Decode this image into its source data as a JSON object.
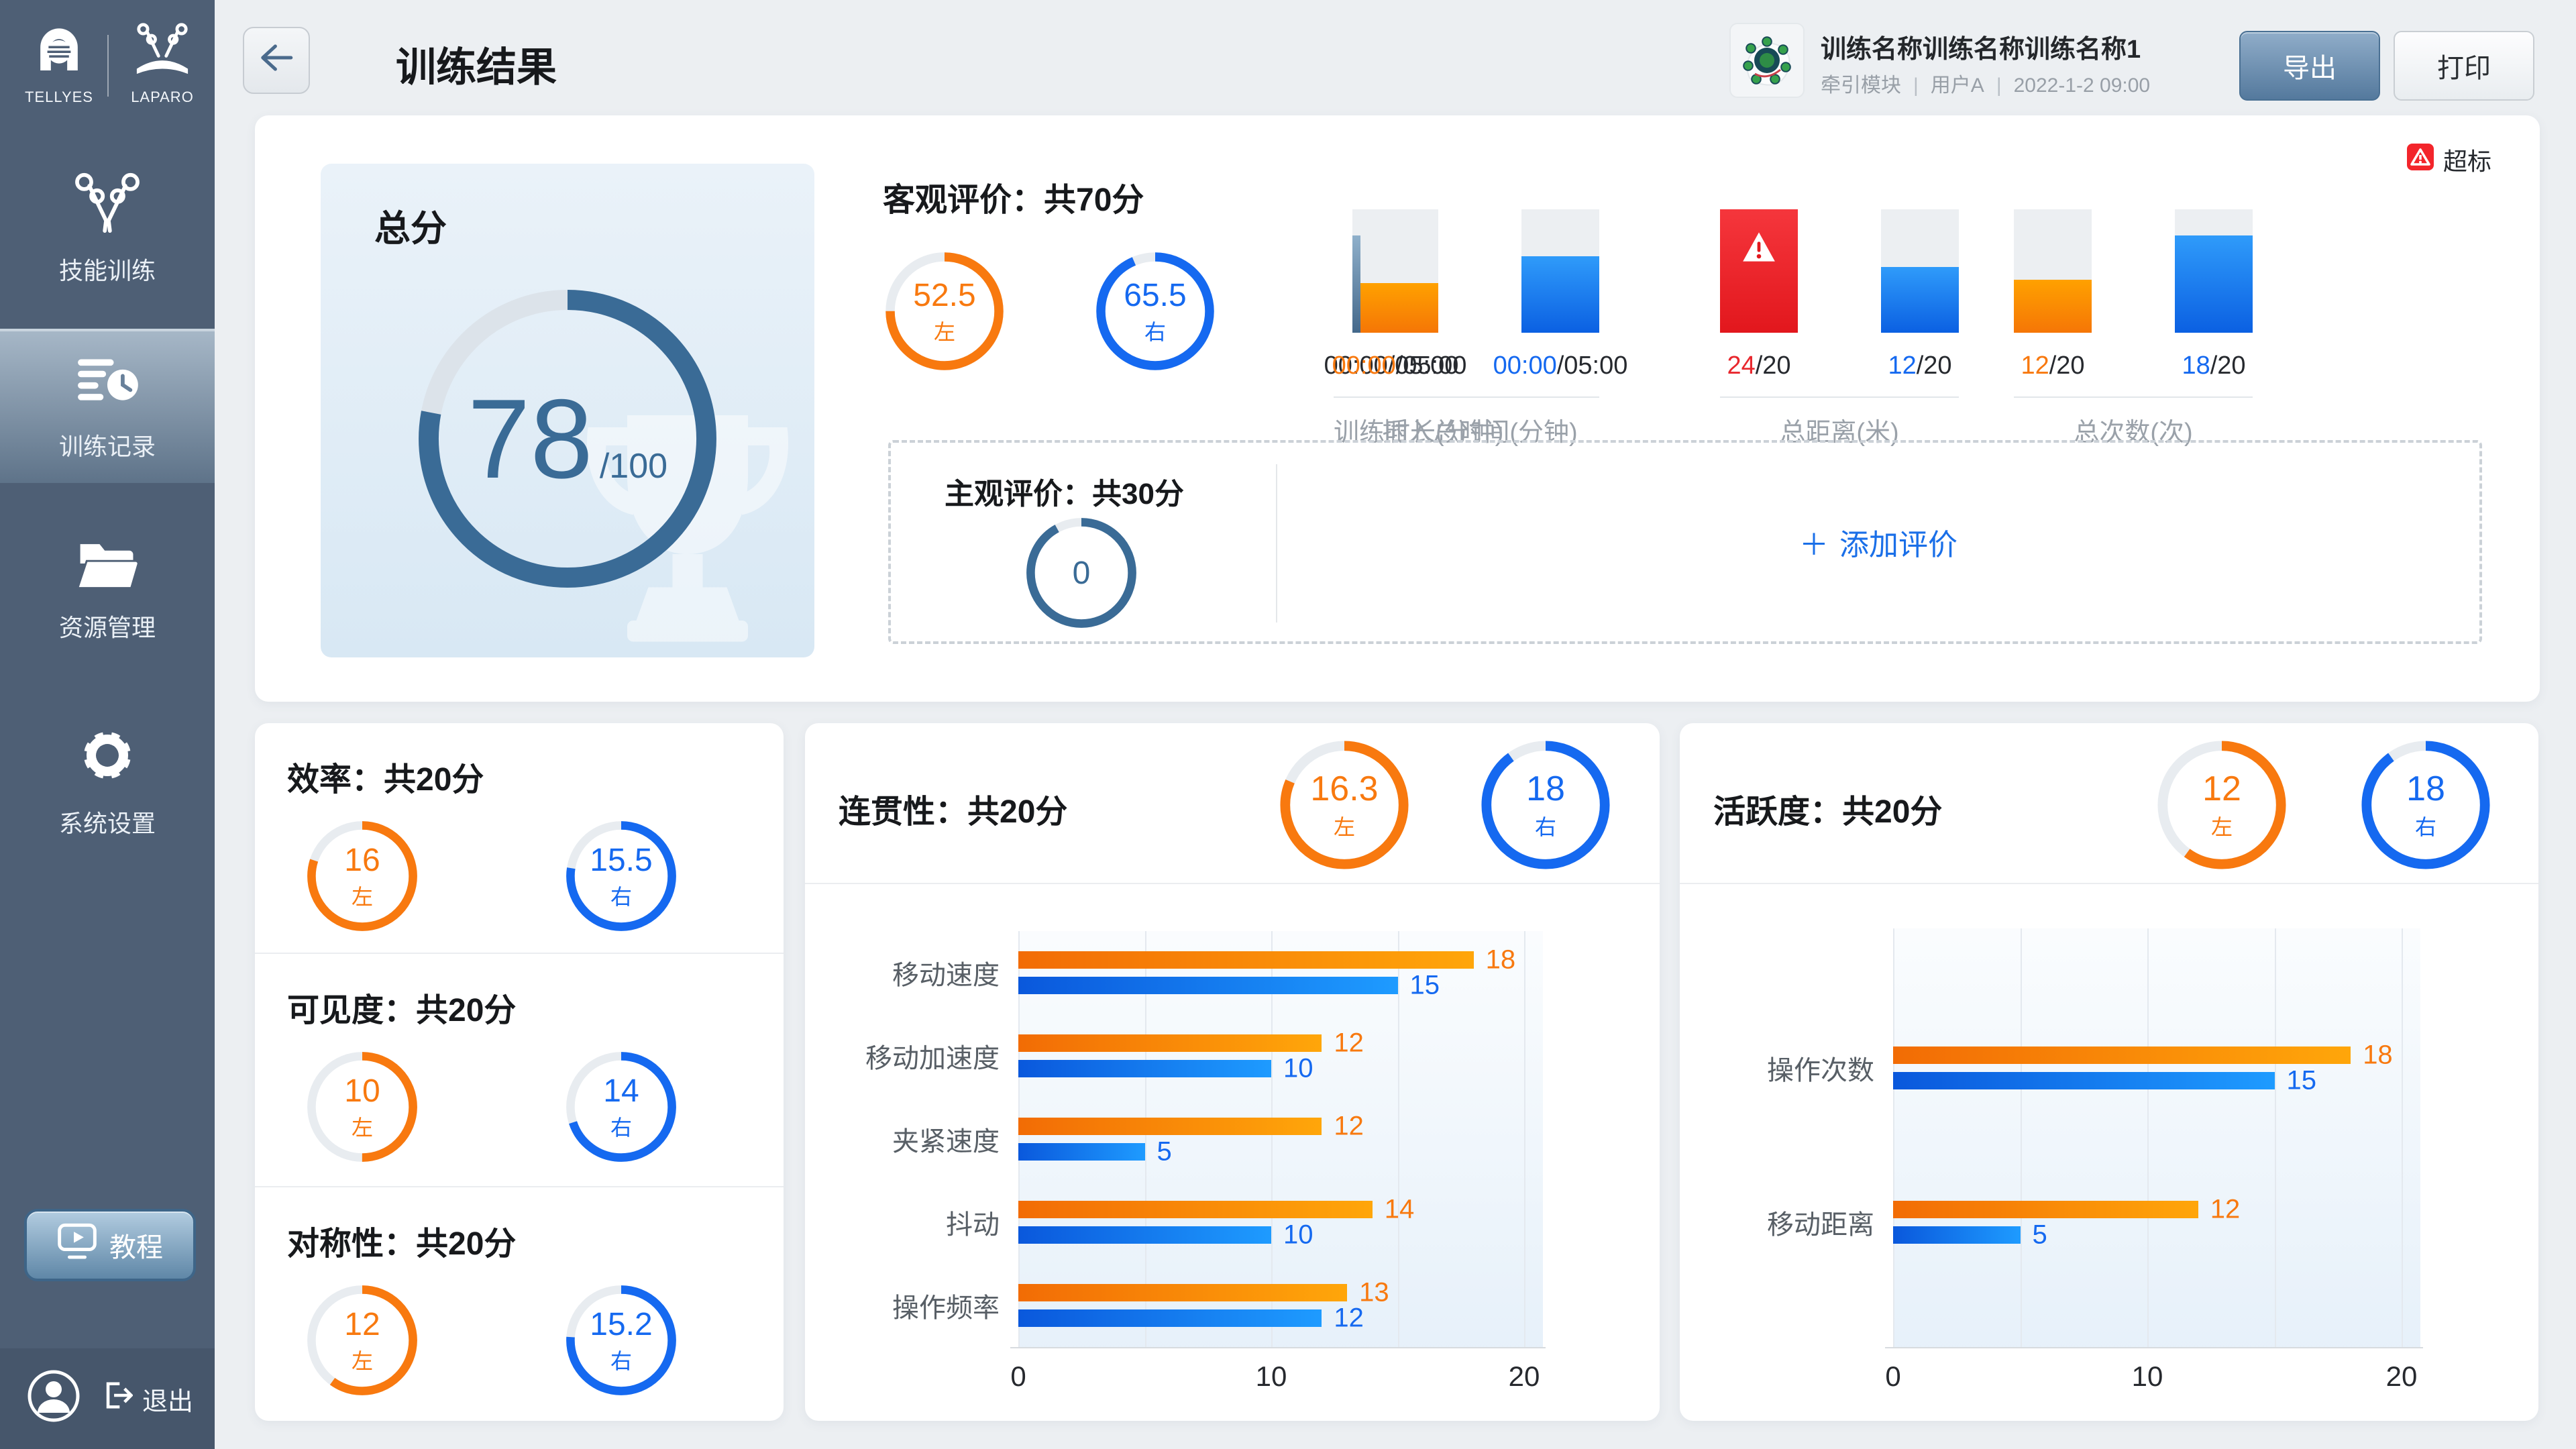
{
  "palette": {
    "orange": "#F8790F",
    "blue": "#1569F0",
    "steel": "#3A6B96",
    "red": "#E8272D",
    "dark": "#26292E"
  },
  "sidebar": {
    "logo1": "TELLYES",
    "logo2": "LAPARO",
    "menu": [
      {
        "label": "技能训练"
      },
      {
        "label": "训练记录"
      },
      {
        "label": "资源管理"
      },
      {
        "label": "系统设置"
      }
    ],
    "tutorial_label": "教程",
    "logout_label": "退出"
  },
  "header": {
    "title": "训练结果",
    "session": {
      "name": "训练名称训练名称训练名称1",
      "module": "牵引模块",
      "user": "用户A",
      "datetime": "2022-1-2 09:00",
      "sep": "|"
    },
    "export_label": "导出",
    "print_label": "打印"
  },
  "overview": {
    "total": {
      "label": "总分",
      "value": "78",
      "max_label": "/100",
      "pct": 0.78,
      "color": "steel"
    },
    "objective": {
      "heading": "客观评价：共70分",
      "left": {
        "value": "52.5",
        "sub": "左",
        "pct": 0.75,
        "color": "orange"
      },
      "right": {
        "value": "65.5",
        "sub": "右",
        "pct": 0.936,
        "color": "blue"
      }
    },
    "over_limit_label": "超标",
    "gauges": [
      {
        "label": "训练时长(分钟)",
        "bars": [
          {
            "type": "steel",
            "fill": 0.79,
            "value": [
              {
                "t": "00:00",
                "c": "dark"
              },
              {
                "t": "/05:00",
                "c": "dark"
              }
            ]
          }
        ]
      },
      {
        "label": "插入总时间(分钟)",
        "bars": [
          {
            "type": "orange",
            "fill": 0.4,
            "value": [
              {
                "t": "00:00",
                "c": "orange"
              },
              {
                "t": "/05:00",
                "c": "dark"
              }
            ]
          },
          {
            "type": "blue",
            "fill": 0.62,
            "value": [
              {
                "t": "00:00",
                "c": "blue"
              },
              {
                "t": "/05:00",
                "c": "dark"
              }
            ]
          }
        ]
      },
      {
        "label": "总距离(米)",
        "bars": [
          {
            "type": "red",
            "fill": 1,
            "warning": true,
            "value": [
              {
                "t": "24",
                "c": "red"
              },
              {
                "t": "/20",
                "c": "dark"
              }
            ]
          },
          {
            "type": "blue",
            "fill": 0.53,
            "value": [
              {
                "t": "12",
                "c": "blue"
              },
              {
                "t": "/20",
                "c": "dark"
              }
            ]
          }
        ]
      },
      {
        "label": "总次数(次)",
        "bars": [
          {
            "type": "orange",
            "fill": 0.43,
            "value": [
              {
                "t": "12",
                "c": "orange"
              },
              {
                "t": "/20",
                "c": "dark"
              }
            ]
          },
          {
            "type": "blue",
            "fill": 0.79,
            "value": [
              {
                "t": "18",
                "c": "blue"
              },
              {
                "t": "/20",
                "c": "dark"
              }
            ]
          }
        ]
      }
    ],
    "subjective": {
      "heading": "主观评价：共30分",
      "ring": {
        "value": "0",
        "pct": 0.92,
        "color": "steel"
      },
      "plus": "＋",
      "add_label": "添加评价"
    }
  },
  "metrics": [
    {
      "heading": "效率：共20分",
      "left": {
        "value": "16",
        "sub": "左",
        "pct": 0.8,
        "color": "orange"
      },
      "right": {
        "value": "15.5",
        "sub": "右",
        "pct": 0.775,
        "color": "blue"
      }
    },
    {
      "heading": "可见度：共20分",
      "left": {
        "value": "10",
        "sub": "左",
        "pct": 0.5,
        "color": "orange"
      },
      "right": {
        "value": "14",
        "sub": "右",
        "pct": 0.7,
        "color": "blue"
      }
    },
    {
      "heading": "对称性：共20分",
      "left": {
        "value": "12",
        "sub": "左",
        "pct": 0.6,
        "color": "orange"
      },
      "right": {
        "value": "15.2",
        "sub": "右",
        "pct": 0.76,
        "color": "blue"
      }
    }
  ],
  "coherence": {
    "heading": "连贯性：共20分",
    "left": {
      "value": "16.3",
      "sub": "左",
      "pct": 0.815,
      "color": "orange"
    },
    "right": {
      "value": "18",
      "sub": "右",
      "pct": 0.9,
      "color": "blue"
    }
  },
  "activity": {
    "heading": "活跃度：共20分",
    "left": {
      "value": "12",
      "sub": "左",
      "pct": 0.6,
      "color": "orange"
    },
    "right": {
      "value": "18",
      "sub": "右",
      "pct": 0.9,
      "color": "blue"
    }
  },
  "chart_data": [
    {
      "type": "bar",
      "orientation": "horizontal",
      "title": "连贯性",
      "categories": [
        "移动速度",
        "移动加速度",
        "夹紧速度",
        "抖动",
        "操作频率"
      ],
      "series": [
        {
          "name": "左",
          "color": "orange",
          "values": [
            18,
            12,
            12,
            14,
            13
          ]
        },
        {
          "name": "右",
          "color": "blue",
          "values": [
            15,
            10,
            5,
            10,
            12
          ]
        }
      ],
      "xlim": [
        0,
        20
      ],
      "xticks": [
        0,
        10,
        20
      ],
      "grid_step": 5
    },
    {
      "type": "bar",
      "orientation": "horizontal",
      "title": "活跃度",
      "categories": [
        "操作次数",
        "移动距离"
      ],
      "series": [
        {
          "name": "左",
          "color": "orange",
          "values": [
            18,
            12
          ]
        },
        {
          "name": "右",
          "color": "blue",
          "values": [
            15,
            5
          ]
        }
      ],
      "xlim": [
        0,
        20
      ],
      "xticks": [
        0,
        10,
        20
      ],
      "grid_step": 5
    }
  ]
}
